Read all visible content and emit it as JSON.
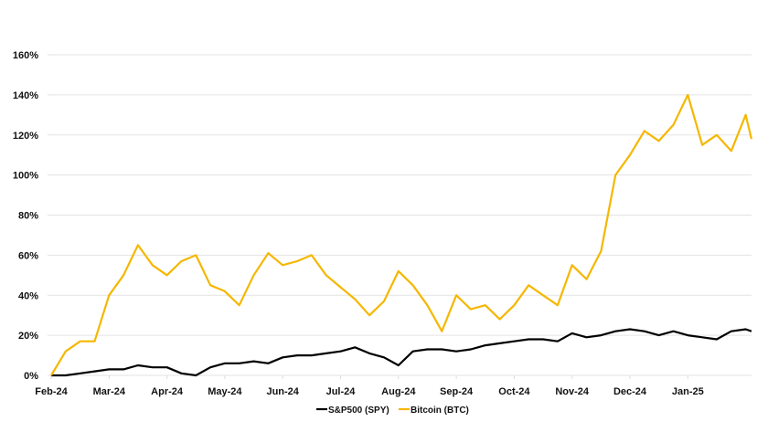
{
  "chart_data": {
    "type": "line",
    "title": "",
    "xlabel": "",
    "ylabel": "",
    "ylim": [
      0,
      160
    ],
    "yticks": [
      "0%",
      "20%",
      "40%",
      "60%",
      "80%",
      "100%",
      "120%",
      "140%",
      "160%"
    ],
    "xticks": [
      "Feb-24",
      "Mar-24",
      "Apr-24",
      "May-24",
      "Jun-24",
      "Jul-24",
      "Aug-24",
      "Sep-24",
      "Oct-24",
      "Nov-24",
      "Dec-24",
      "Jan-25"
    ],
    "grid": true,
    "legend_position": "bottom",
    "x_months": [
      0,
      0.25,
      0.5,
      0.75,
      1,
      1.25,
      1.5,
      1.75,
      2,
      2.25,
      2.5,
      2.75,
      3,
      3.25,
      3.5,
      3.75,
      4,
      4.25,
      4.5,
      4.75,
      5,
      5.25,
      5.5,
      5.75,
      6,
      6.25,
      6.5,
      6.75,
      7,
      7.25,
      7.5,
      7.75,
      8,
      8.25,
      8.5,
      8.75,
      9,
      9.25,
      9.5,
      9.75,
      10,
      10.25,
      10.5,
      10.75,
      11,
      11.25,
      11.5,
      11.75,
      12,
      12.1
    ],
    "series": [
      {
        "name": "S&P500 (SPY)",
        "color": "#000000",
        "values": [
          0,
          0,
          1,
          2,
          3,
          3,
          5,
          4,
          4,
          1,
          0,
          4,
          6,
          6,
          7,
          6,
          9,
          10,
          10,
          11,
          12,
          14,
          11,
          9,
          5,
          12,
          13,
          13,
          12,
          13,
          15,
          16,
          17,
          18,
          18,
          17,
          21,
          19,
          20,
          22,
          23,
          22,
          20,
          22,
          20,
          19,
          18,
          22,
          23,
          22
        ]
      },
      {
        "name": "Bitcoin (BTC)",
        "color": "#F5B700",
        "values": [
          0,
          12,
          17,
          17,
          40,
          50,
          65,
          55,
          50,
          57,
          60,
          45,
          42,
          35,
          50,
          61,
          55,
          57,
          60,
          50,
          44,
          38,
          30,
          37,
          52,
          45,
          35,
          22,
          40,
          33,
          35,
          28,
          35,
          45,
          40,
          35,
          55,
          48,
          62,
          100,
          110,
          122,
          117,
          125,
          140,
          115,
          120,
          112,
          130,
          118
        ]
      }
    ]
  },
  "legend": {
    "spy_label": "S&P500 (SPY)",
    "btc_label": "Bitcoin (BTC)"
  }
}
